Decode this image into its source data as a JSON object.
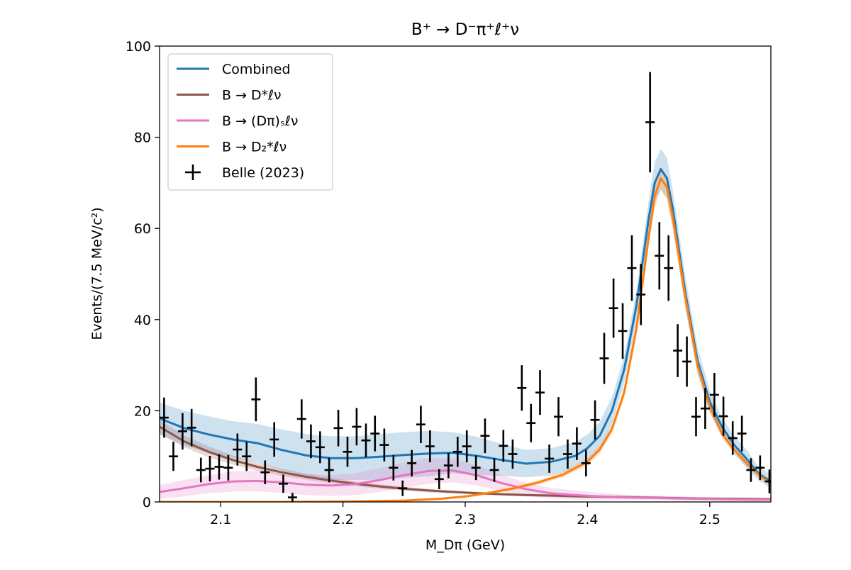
{
  "chart_data": {
    "type": "line",
    "title": "B⁺ → D⁻π⁺ℓ⁺ν",
    "xlabel": "M_Dπ (GeV)",
    "ylabel": "Events/(7.5 MeV/c²)",
    "xlim": [
      2.05,
      2.55
    ],
    "ylim": [
      0,
      100
    ],
    "xticks": [
      2.1,
      2.2,
      2.3,
      2.4,
      2.5
    ],
    "xtick_labels": [
      "2.1",
      "2.2",
      "2.3",
      "2.4",
      "2.5"
    ],
    "yticks": [
      0,
      20,
      40,
      60,
      80,
      100
    ],
    "ytick_labels": [
      "0",
      "20",
      "40",
      "60",
      "80",
      "100"
    ],
    "grid": false,
    "legend_position": "top-left",
    "legend": [
      {
        "label": "Combined",
        "color": "#1f77b4",
        "kind": "line"
      },
      {
        "label": "B → D*ℓν",
        "color": "#8c564b",
        "kind": "line"
      },
      {
        "label": "B → (Dπ)ₛℓν",
        "color": "#e377c2",
        "kind": "line"
      },
      {
        "label": "B → D₂*ℓν",
        "color": "#ff7f0e",
        "kind": "line"
      },
      {
        "label": "Belle (2023)",
        "color": "#000000",
        "kind": "errorbar"
      }
    ],
    "series": [
      {
        "name": "Combined",
        "color": "#1f77b4",
        "x": [
          2.05,
          2.07,
          2.09,
          2.11,
          2.13,
          2.15,
          2.17,
          2.19,
          2.21,
          2.23,
          2.25,
          2.27,
          2.29,
          2.31,
          2.33,
          2.35,
          2.37,
          2.39,
          2.4,
          2.41,
          2.42,
          2.43,
          2.44,
          2.45,
          2.455,
          2.46,
          2.465,
          2.47,
          2.48,
          2.49,
          2.5,
          2.51,
          2.52,
          2.53,
          2.54,
          2.55
        ],
        "y": [
          18.3,
          16.2,
          14.8,
          13.7,
          12.9,
          11.4,
          10.2,
          9.6,
          9.6,
          9.9,
          10.3,
          10.6,
          10.8,
          10.1,
          9.2,
          8.4,
          8.8,
          10.1,
          11.8,
          14.5,
          20,
          29,
          43,
          62,
          70,
          73,
          71,
          64,
          46,
          31,
          22,
          16.5,
          12.5,
          9.5,
          6.2,
          4.5
        ],
        "band": [
          3.5,
          3.8,
          4,
          4,
          4.2,
          4.5,
          4.7,
          4.8,
          4.8,
          5,
          5,
          5,
          4.5,
          4.2,
          3.5,
          3,
          3,
          3,
          3,
          3,
          3,
          3,
          3.5,
          4,
          4.5,
          4.5,
          4.5,
          4,
          3.5,
          3,
          2.5,
          2,
          2,
          2,
          1.5,
          1.5
        ]
      },
      {
        "name": "B → D*ℓν",
        "color": "#8c564b",
        "x": [
          2.05,
          2.07,
          2.09,
          2.11,
          2.13,
          2.15,
          2.17,
          2.19,
          2.21,
          2.23,
          2.25,
          2.27,
          2.29,
          2.31,
          2.33,
          2.35,
          2.37,
          2.39,
          2.41,
          2.43,
          2.45,
          2.47,
          2.49,
          2.51,
          2.53,
          2.55
        ],
        "y": [
          16.5,
          13.3,
          11,
          9.2,
          7.7,
          6.5,
          5.5,
          4.7,
          4,
          3.4,
          2.9,
          2.5,
          2.2,
          1.9,
          1.7,
          1.5,
          1.4,
          1.25,
          1.15,
          1.05,
          0.95,
          0.85,
          0.75,
          0.7,
          0.65,
          0.6
        ],
        "band": [
          1.5,
          1.3,
          1.2,
          1,
          0.9,
          0.8,
          0.7,
          0.6,
          0.5,
          0.5,
          0.4,
          0.4,
          0.3,
          0.3,
          0.3,
          0.3,
          0.3,
          0.3,
          0.3,
          0.3,
          0.3,
          0.3,
          0.3,
          0.3,
          0.3,
          0.3
        ]
      },
      {
        "name": "B → (Dπ)ₛℓν",
        "color": "#e377c2",
        "x": [
          2.05,
          2.07,
          2.09,
          2.11,
          2.13,
          2.15,
          2.17,
          2.19,
          2.21,
          2.23,
          2.25,
          2.27,
          2.29,
          2.31,
          2.33,
          2.35,
          2.37,
          2.39,
          2.41,
          2.43,
          2.45,
          2.47,
          2.49,
          2.51,
          2.53,
          2.55
        ],
        "y": [
          2.2,
          3,
          3.9,
          4.5,
          4.6,
          4.3,
          3.8,
          3.6,
          3.9,
          4.8,
          5.9,
          6.8,
          6.9,
          5.8,
          4.1,
          2.8,
          1.9,
          1.5,
          1.2,
          1,
          0.9,
          0.8,
          0.7,
          0.6,
          0.5,
          0.5
        ],
        "band": [
          1.5,
          1.8,
          2,
          2.2,
          2.3,
          2.3,
          2.3,
          2.3,
          2.4,
          2.6,
          2.8,
          2.8,
          2.6,
          2.2,
          1.8,
          1.4,
          1.2,
          1,
          0.8,
          0.6,
          0.5,
          0.5,
          0.4,
          0.4,
          0.3,
          0.3
        ]
      },
      {
        "name": "B → D₂*ℓν",
        "color": "#ff7f0e",
        "x": [
          2.05,
          2.1,
          2.15,
          2.2,
          2.25,
          2.28,
          2.3,
          2.32,
          2.34,
          2.36,
          2.38,
          2.4,
          2.41,
          2.42,
          2.43,
          2.44,
          2.45,
          2.455,
          2.46,
          2.465,
          2.47,
          2.48,
          2.49,
          2.5,
          2.51,
          2.52,
          2.53,
          2.54,
          2.55
        ],
        "y": [
          0,
          0,
          0,
          0.1,
          0.3,
          0.7,
          1.2,
          2,
          3,
          4.3,
          6,
          8.8,
          11.5,
          16,
          24,
          38,
          58,
          67,
          71,
          69,
          62,
          45,
          30,
          21,
          15,
          11.5,
          8.5,
          6,
          4
        ],
        "band": [
          0,
          0,
          0,
          0.1,
          0.1,
          0.2,
          0.3,
          0.3,
          0.4,
          0.5,
          0.6,
          0.8,
          0.9,
          1,
          1.2,
          1.5,
          2,
          2.5,
          2.5,
          2.5,
          2.5,
          2,
          1.5,
          1.2,
          1,
          0.8,
          0.7,
          0.6,
          0.5
        ]
      }
    ],
    "data_points": {
      "name": "Belle (2023)",
      "x": [
        2.0537,
        2.0613,
        2.0688,
        2.0762,
        2.0838,
        2.0912,
        2.0987,
        2.1062,
        2.1137,
        2.1212,
        2.1288,
        2.1363,
        2.1438,
        2.1512,
        2.1587,
        2.1662,
        2.1738,
        2.1813,
        2.1887,
        2.1962,
        2.2037,
        2.2112,
        2.2188,
        2.2262,
        2.2338,
        2.2413,
        2.2488,
        2.2563,
        2.2637,
        2.2712,
        2.2787,
        2.2863,
        2.2938,
        2.3013,
        2.3088,
        2.3162,
        2.3238,
        2.3312,
        2.3388,
        2.3463,
        2.3538,
        2.3612,
        2.3688,
        2.3763,
        2.3838,
        2.3913,
        2.3988,
        2.4062,
        2.4137,
        2.4213,
        2.4288,
        2.4363,
        2.4437,
        2.4512,
        2.4588,
        2.4663,
        2.4738,
        2.4813,
        2.4888,
        2.4963,
        2.5038,
        2.5112,
        2.5188,
        2.5263,
        2.5337,
        2.5412,
        2.5488
      ],
      "y": [
        18.5,
        10,
        15.5,
        16.3,
        7,
        7.3,
        7.7,
        7.5,
        11.5,
        10,
        22.5,
        6.5,
        13.7,
        4,
        1,
        18.2,
        13.3,
        12,
        7,
        16.2,
        11,
        16.5,
        13.5,
        15,
        12.5,
        7.5,
        3,
        8.5,
        17,
        12.2,
        5,
        8,
        11,
        12.2,
        7.5,
        14.5,
        7,
        12.3,
        10.5,
        25,
        17.3,
        24,
        9.5,
        18.7,
        10.5,
        12.8,
        8.5,
        18,
        31.5,
        42.5,
        37.5,
        51.3,
        45.5,
        83.3,
        54,
        51.3,
        33.2,
        30.8,
        18.7,
        20.5,
        23.5,
        18.8,
        14,
        15,
        7,
        7.5,
        4.5
      ],
      "yerr": [
        4.4,
        3.2,
        4,
        4.1,
        2.7,
        2.8,
        2.8,
        2.8,
        3.5,
        3.2,
        4.8,
        2.6,
        3.8,
        2,
        1,
        4.3,
        3.7,
        3.5,
        2.7,
        4,
        3.3,
        4.1,
        3.7,
        3.9,
        3.6,
        2.8,
        1.7,
        2.9,
        4.1,
        3.5,
        2.2,
        2.8,
        3.3,
        3.5,
        2.7,
        3.8,
        2.6,
        3.5,
        3.2,
        5,
        4.2,
        4.9,
        3.1,
        4.3,
        3.2,
        3.6,
        2.9,
        4.3,
        5.6,
        6.5,
        6.1,
        7.2,
        6.7,
        11,
        7.4,
        7.2,
        5.8,
        5.5,
        4.3,
        4.5,
        4.8,
        4.3,
        3.7,
        3.9,
        2.6,
        2.7,
        2.6
      ]
    }
  }
}
